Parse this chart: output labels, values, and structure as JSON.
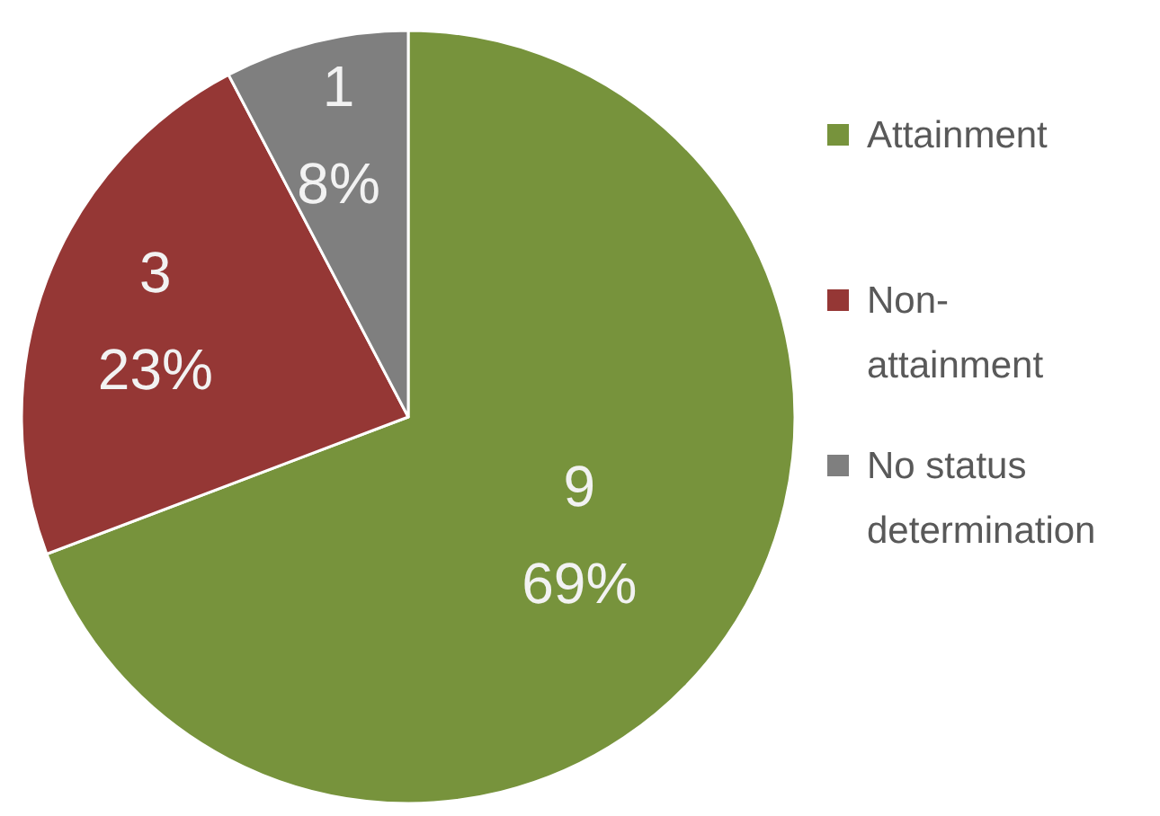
{
  "chart_data": {
    "type": "pie",
    "categories": [
      "Attainment",
      "Non-attainment",
      "No status determination"
    ],
    "values": [
      9,
      3,
      1
    ],
    "colors": [
      "#77933c",
      "#953735",
      "#7f7f7f"
    ],
    "value_labels": [
      "9\n69%",
      "3\n23%",
      "1\n8%"
    ],
    "legend": "right"
  }
}
